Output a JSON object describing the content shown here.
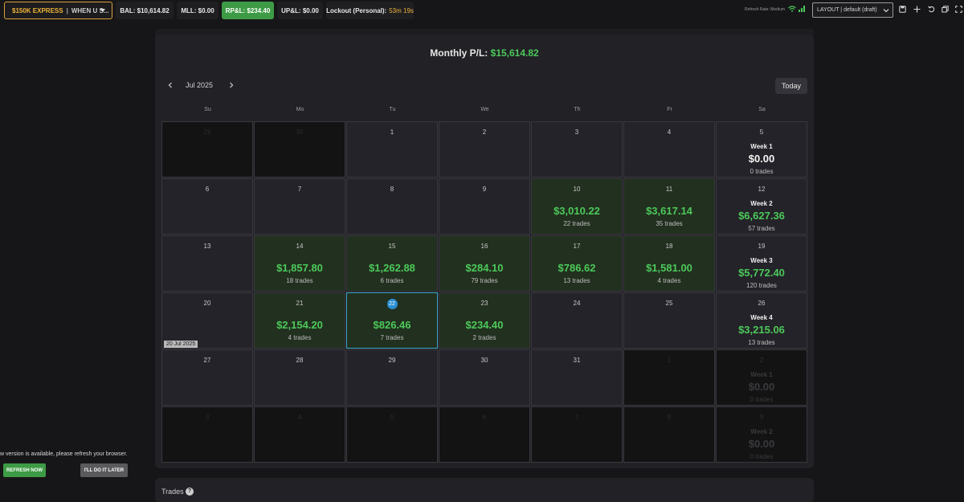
{
  "topbar": {
    "account": {
      "name": "$150K EXPRESS",
      "separator": "|",
      "strategy": "WHEN U S..."
    },
    "bal": "BAL: $10,614.82",
    "mll": "MLL: $0.00",
    "rpl": "RP&L: $234.40",
    "upl": "UP&L: $0.00",
    "lockout_label": "Lockout (Personal):",
    "lockout_value": "53m 19s",
    "refresh_rate": "Refresh Rate: Medium",
    "layout_select": "LAYOUT | default (draft)"
  },
  "calendar": {
    "monthly_label": "Monthly P/L:",
    "monthly_value": "$15,614.82",
    "month": "Jul 2025",
    "today_button": "Today",
    "weekdays": [
      "Su",
      "Mo",
      "Tu",
      "We",
      "Th",
      "Fr",
      "Sa"
    ],
    "date_tooltip": "20 Jul 2025",
    "weeks": [
      [
        {
          "day": "29",
          "style": "dark"
        },
        {
          "day": "30",
          "style": "dark"
        },
        {
          "day": "1"
        },
        {
          "day": "2"
        },
        {
          "day": "3"
        },
        {
          "day": "4"
        },
        {
          "day": "5",
          "week_label": "Week 1",
          "week_value": "$0.00",
          "week_trades": "0 trades"
        }
      ],
      [
        {
          "day": "6"
        },
        {
          "day": "7"
        },
        {
          "day": "8"
        },
        {
          "day": "9"
        },
        {
          "day": "10",
          "style": "green",
          "pnl": "$3,010.22",
          "trades": "22 trades"
        },
        {
          "day": "11",
          "style": "green",
          "pnl": "$3,617.14",
          "trades": "35 trades"
        },
        {
          "day": "12",
          "week_label": "Week 2",
          "week_value": "$6,627.36",
          "week_trades": "57 trades",
          "positive": true
        }
      ],
      [
        {
          "day": "13"
        },
        {
          "day": "14",
          "style": "green",
          "pnl": "$1,857.80",
          "trades": "18 trades"
        },
        {
          "day": "15",
          "style": "green",
          "pnl": "$1,262.88",
          "trades": "6 trades"
        },
        {
          "day": "16",
          "style": "green",
          "pnl": "$284.10",
          "trades": "79 trades"
        },
        {
          "day": "17",
          "style": "green",
          "pnl": "$786.62",
          "trades": "13 trades"
        },
        {
          "day": "18",
          "style": "green",
          "pnl": "$1,581.00",
          "trades": "4 trades"
        },
        {
          "day": "19",
          "week_label": "Week 3",
          "week_value": "$5,772.40",
          "week_trades": "120 trades",
          "positive": true
        }
      ],
      [
        {
          "day": "20",
          "tooltip": true
        },
        {
          "day": "21",
          "style": "green",
          "pnl": "$2,154.20",
          "trades": "4 trades"
        },
        {
          "day": "22",
          "style": "sel",
          "today": true,
          "pnl": "$826.46",
          "trades": "7 trades"
        },
        {
          "day": "23",
          "style": "green",
          "pnl": "$234.40",
          "trades": "2 trades"
        },
        {
          "day": "24"
        },
        {
          "day": "25"
        },
        {
          "day": "26",
          "week_label": "Week 4",
          "week_value": "$3,215.06",
          "week_trades": "13 trades",
          "positive": true
        }
      ],
      [
        {
          "day": "27"
        },
        {
          "day": "28"
        },
        {
          "day": "29"
        },
        {
          "day": "30"
        },
        {
          "day": "31"
        },
        {
          "day": "1",
          "style": "dark"
        },
        {
          "day": "2",
          "style": "dark",
          "faded": true,
          "week_label": "Week 1",
          "week_value": "$0.00",
          "week_trades": "0 trades"
        }
      ],
      [
        {
          "day": "3",
          "style": "dark"
        },
        {
          "day": "4",
          "style": "dark"
        },
        {
          "day": "5",
          "style": "dark"
        },
        {
          "day": "6",
          "style": "dark"
        },
        {
          "day": "7",
          "style": "dark"
        },
        {
          "day": "8",
          "style": "dark"
        },
        {
          "day": "9",
          "style": "dark",
          "faded": true,
          "week_label": "Week 2",
          "week_value": "$0.00",
          "week_trades": "0 trades"
        }
      ]
    ]
  },
  "trades_panel": {
    "label": "Trades",
    "help": "?"
  },
  "notification": {
    "message": "w version is available, please refresh your browser.",
    "refresh_button": "REFRESH NOW",
    "later_button": "I'LL DO IT LATER"
  },
  "colors": {
    "accent_gold": "#f0b43a",
    "profit_green": "#4cc95a",
    "button_green": "#3d9b45",
    "today_blue": "#2a8fd3"
  }
}
